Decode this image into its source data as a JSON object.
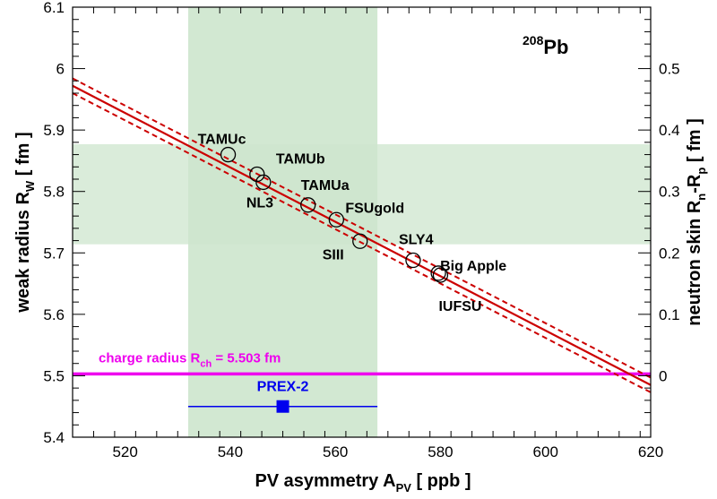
{
  "chart_data": {
    "type": "scatter",
    "title": "208Pb",
    "title_sup": "208",
    "title_main": "Pb",
    "xlabel": {
      "main": "PV asymmetry A",
      "sub": "PV",
      "tail": " [ ppb ]"
    },
    "ylabel": {
      "main": "weak radius R",
      "sub": "W",
      "tail": " [ fm ]"
    },
    "y2label": {
      "main": "neutron skin R",
      "sub1": "n",
      "mid": "-R",
      "sub2": "p",
      "tail": " [ fm ]"
    },
    "xlim": [
      510,
      620
    ],
    "ylim": [
      5.4,
      6.1
    ],
    "y2lim": [
      -0.1,
      0.6
    ],
    "x_ticks": [
      "520",
      "540",
      "560",
      "580",
      "600",
      "620"
    ],
    "y_ticks": [
      "5.4",
      "5.5",
      "5.6",
      "5.7",
      "5.8",
      "5.9",
      "6",
      "6.1"
    ],
    "y2_ticks": [
      "0",
      "0.1",
      "0.2",
      "0.3",
      "0.4",
      "0.5"
    ],
    "models": [
      {
        "name": "TAMUc",
        "x": 539.6,
        "y": 5.86
      },
      {
        "name": "TAMUb",
        "x": 545.1,
        "y": 5.828
      },
      {
        "name": "NL3",
        "x": 546.3,
        "y": 5.815
      },
      {
        "name": "TAMUa",
        "x": 554.8,
        "y": 5.778
      },
      {
        "name": "FSUgold",
        "x": 560.2,
        "y": 5.754
      },
      {
        "name": "SIII",
        "x": 564.7,
        "y": 5.719
      },
      {
        "name": "SLY4",
        "x": 574.8,
        "y": 5.688
      },
      {
        "name": "Big Apple",
        "x": 579.6,
        "y": 5.667
      },
      {
        "name": "IUFSU",
        "x": 580.0,
        "y": 5.664
      }
    ],
    "fit_line": {
      "x": [
        510,
        620
      ],
      "y": [
        5.972,
        5.485
      ],
      "band_offset": 0.012,
      "color": "#cc0000"
    },
    "charge_radius": {
      "label_main": "charge radius R",
      "label_sub": "ch",
      "label_tail": " = 5.503 fm",
      "value": 5.503,
      "color": "#ee00ee"
    },
    "prex2": {
      "label": "PREX-2",
      "x": 550,
      "y": 5.45,
      "x_err_low": 532,
      "x_err_high": 568,
      "color": "#0000ee"
    },
    "apv_band": {
      "x_low": 532,
      "x_high": 568,
      "color": "#cde6cd"
    },
    "rw_band": {
      "y_low": 5.714,
      "y_high": 5.877,
      "color": "#cde6cd"
    },
    "grid": false,
    "legend": "none"
  }
}
